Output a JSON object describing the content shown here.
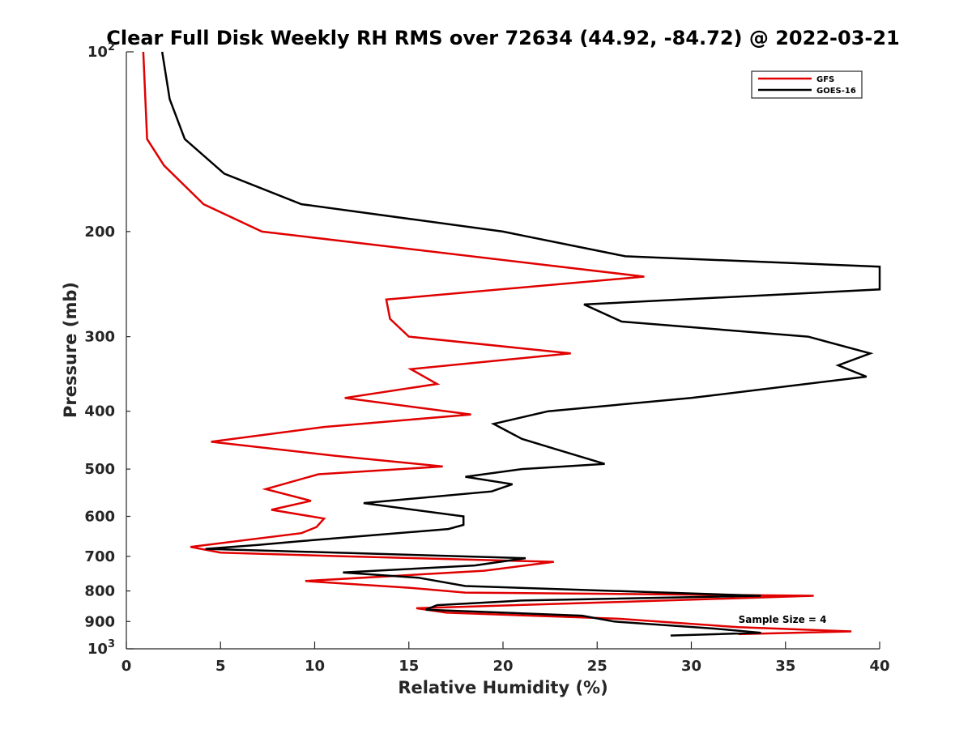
{
  "chart_data": {
    "type": "line",
    "title": "Clear Full Disk Weekly RH RMS over 72634 (44.92, -84.72) @ 2022-03-21",
    "xlabel": "Relative Humidity (%)",
    "ylabel": "Pressure (mb)",
    "xlim": [
      0,
      40
    ],
    "ylim": [
      100,
      1000
    ],
    "yscale": "log",
    "y_reversed": true,
    "grid": false,
    "legend_position": "top-right",
    "x_ticks": [
      "0",
      "5",
      "10",
      "15",
      "20",
      "25",
      "30",
      "35",
      "40"
    ],
    "y_tick_values": [
      100,
      200,
      300,
      400,
      500,
      600,
      700,
      800,
      900,
      1000
    ],
    "y_ticks": [
      {
        "base": "10",
        "exp": "2"
      },
      {
        "base": "200",
        "exp": ""
      },
      {
        "base": "300",
        "exp": ""
      },
      {
        "base": "400",
        "exp": ""
      },
      {
        "base": "500",
        "exp": ""
      },
      {
        "base": "600",
        "exp": ""
      },
      {
        "base": "700",
        "exp": ""
      },
      {
        "base": "800",
        "exp": ""
      },
      {
        "base": "900",
        "exp": ""
      },
      {
        "base": "10",
        "exp": "3"
      }
    ],
    "series": [
      {
        "name": "GFS",
        "color": "#e00000",
        "points": [
          [
            0.9,
            100
          ],
          [
            1.1,
            140
          ],
          [
            2.0,
            155
          ],
          [
            4.1,
            180
          ],
          [
            7.2,
            200
          ],
          [
            27.5,
            238
          ],
          [
            13.8,
            260
          ],
          [
            14.0,
            280
          ],
          [
            15.0,
            300
          ],
          [
            23.6,
            320
          ],
          [
            15.1,
            340
          ],
          [
            16.5,
            360
          ],
          [
            11.6,
            380
          ],
          [
            18.3,
            405
          ],
          [
            10.5,
            425
          ],
          [
            4.5,
            450
          ],
          [
            11.1,
            475
          ],
          [
            16.8,
            495
          ],
          [
            10.2,
            510
          ],
          [
            7.4,
            540
          ],
          [
            9.8,
            565
          ],
          [
            7.7,
            585
          ],
          [
            10.5,
            605
          ],
          [
            10.1,
            625
          ],
          [
            9.3,
            640
          ],
          [
            3.4,
            675
          ],
          [
            5.0,
            690
          ],
          [
            11.5,
            700
          ],
          [
            22.7,
            715
          ],
          [
            19.0,
            740
          ],
          [
            9.5,
            770
          ],
          [
            15.0,
            790
          ],
          [
            18.0,
            805
          ],
          [
            36.5,
            815
          ],
          [
            26.0,
            835
          ],
          [
            15.4,
            855
          ],
          [
            17.0,
            870
          ],
          [
            26.0,
            890
          ],
          [
            32.5,
            920
          ],
          [
            38.5,
            935
          ],
          [
            32.5,
            945
          ]
        ]
      },
      {
        "name": "GOES-16",
        "color": "#000000",
        "points": [
          [
            1.9,
            100
          ],
          [
            2.3,
            120
          ],
          [
            3.1,
            140
          ],
          [
            5.2,
            160
          ],
          [
            9.3,
            180
          ],
          [
            20.0,
            200
          ],
          [
            26.5,
            220
          ],
          [
            40.0,
            229
          ],
          [
            40.0,
            250
          ],
          [
            24.3,
            265
          ],
          [
            26.3,
            283
          ],
          [
            36.2,
            300
          ],
          [
            39.5,
            320
          ],
          [
            37.8,
            335
          ],
          [
            39.3,
            350
          ],
          [
            30.0,
            380
          ],
          [
            22.4,
            400
          ],
          [
            19.5,
            420
          ],
          [
            21.0,
            445
          ],
          [
            23.0,
            465
          ],
          [
            25.4,
            490
          ],
          [
            21.0,
            500
          ],
          [
            18.0,
            515
          ],
          [
            20.5,
            530
          ],
          [
            19.4,
            545
          ],
          [
            12.6,
            570
          ],
          [
            17.9,
            600
          ],
          [
            17.9,
            620
          ],
          [
            17.1,
            630
          ],
          [
            9.3,
            660
          ],
          [
            7.0,
            670
          ],
          [
            4.2,
            680
          ],
          [
            21.2,
            705
          ],
          [
            18.5,
            725
          ],
          [
            11.5,
            745
          ],
          [
            15.5,
            760
          ],
          [
            18.0,
            785
          ],
          [
            33.7,
            815
          ],
          [
            21.0,
            830
          ],
          [
            16.5,
            845
          ],
          [
            15.9,
            860
          ],
          [
            24.2,
            880
          ],
          [
            25.9,
            900
          ],
          [
            31.2,
            925
          ],
          [
            33.7,
            940
          ],
          [
            28.9,
            950
          ]
        ]
      }
    ],
    "annotations": [
      {
        "text": "Sample Size = 4",
        "x": 32.5,
        "y": 905
      }
    ]
  }
}
